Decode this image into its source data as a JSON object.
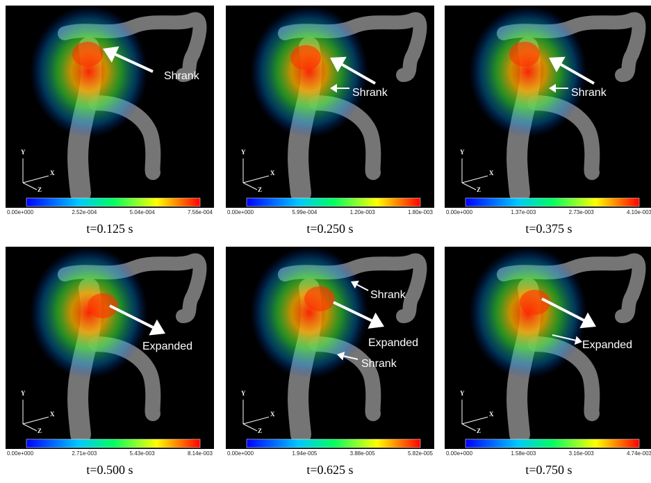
{
  "axes_labels": {
    "y": "Y",
    "x": "X",
    "z": "Z"
  },
  "panels": [
    {
      "caption": "t=0.125 s",
      "colorbar_labels": [
        "0.00e+000",
        "2.52e-004",
        "5.04e-004",
        "7.56e-004"
      ],
      "annotations": [
        "Shrank"
      ]
    },
    {
      "caption": "t=0.250 s",
      "colorbar_labels": [
        "0.00e+000",
        "5.99e-004",
        "1.20e-003",
        "1.80e-003"
      ],
      "annotations": [
        "Shrank"
      ]
    },
    {
      "caption": "t=0.375 s",
      "colorbar_labels": [
        "0.00e+000",
        "1.37e-003",
        "2.73e-003",
        "4.10e-003"
      ],
      "annotations": [
        "Shrank"
      ]
    },
    {
      "caption": "t=0.500 s",
      "colorbar_labels": [
        "0.00e+000",
        "2.71e-003",
        "5.43e-003",
        "8.14e-003"
      ],
      "annotations": [
        "Expanded"
      ]
    },
    {
      "caption": "t=0.625 s",
      "colorbar_labels": [
        "0.00e+000",
        "1.94e-005",
        "3.88e-005",
        "5.82e-005"
      ],
      "annotations": [
        "Shrank",
        "Expanded",
        "Shrank"
      ]
    },
    {
      "caption": "t=0.750 s",
      "colorbar_labels": [
        "0.00e+000",
        "1.58e-003",
        "3.16e-003",
        "4.74e-003"
      ],
      "annotations": [
        "Expanded"
      ]
    }
  ]
}
